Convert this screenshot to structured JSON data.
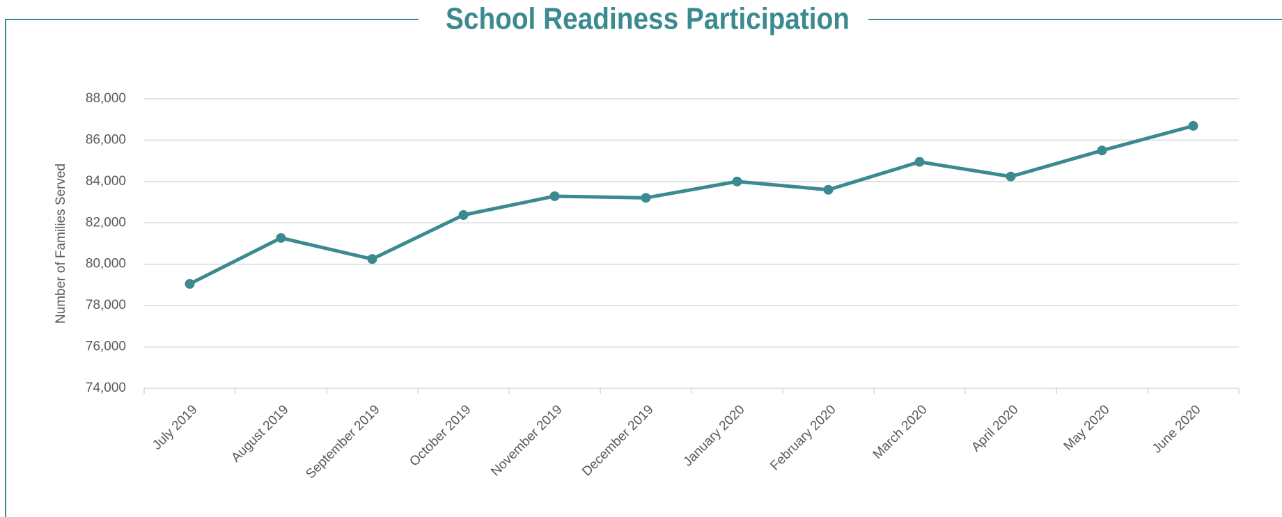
{
  "chart_data": {
    "type": "line",
    "title": "School Readiness Participation",
    "y_label": "Number of Families Served",
    "categories": [
      "July 2019",
      "August 2019",
      "September 2019",
      "October 2019",
      "November 2019",
      "December 2019",
      "January 2020",
      "February 2020",
      "March 2020",
      "April 2020",
      "May 2020",
      "June 2020"
    ],
    "values": [
      79050,
      81270,
      80250,
      82380,
      83290,
      83210,
      84000,
      83600,
      84950,
      84240,
      85500,
      86690
    ],
    "color": "#3a8a8f",
    "ylim": [
      74000,
      88000
    ],
    "yticks": [
      {
        "value": 74000,
        "label": "74,000"
      },
      {
        "value": 76000,
        "label": "76,000"
      },
      {
        "value": 78000,
        "label": "78,000"
      },
      {
        "value": 80000,
        "label": "80,000"
      },
      {
        "value": 82000,
        "label": "82,000"
      },
      {
        "value": 84000,
        "label": "84,000"
      },
      {
        "value": 86000,
        "label": "86,000"
      },
      {
        "value": 88000,
        "label": "88,000"
      }
    ],
    "grid": true
  }
}
